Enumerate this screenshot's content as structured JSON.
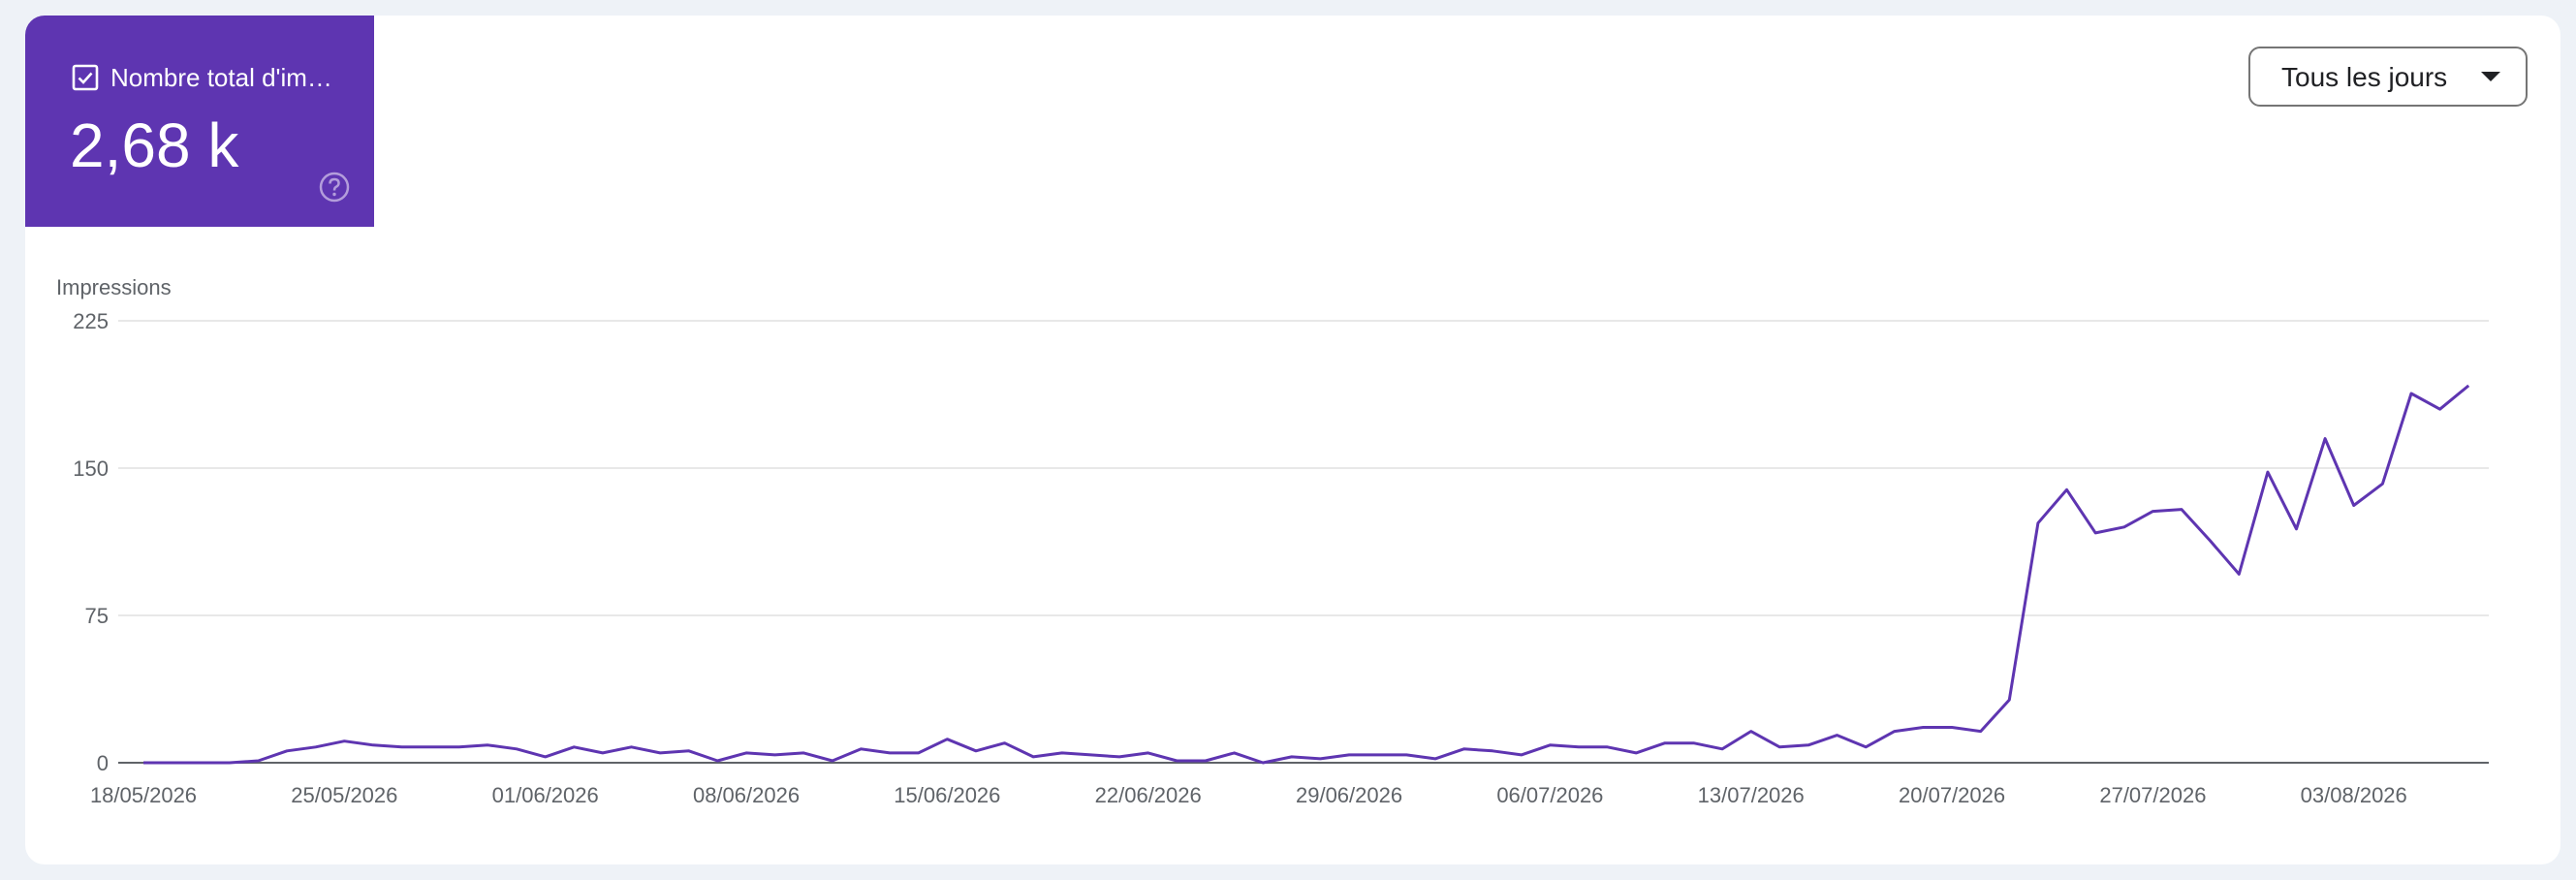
{
  "metric": {
    "label": "Nombre total d'im…",
    "value": "2,68 k",
    "checked": true,
    "color": "#5e35b1"
  },
  "dropdown": {
    "selected": "Tous les jours"
  },
  "chart_data": {
    "type": "line",
    "ylabel": "Impressions",
    "xlabel": "",
    "title": "",
    "ylim": [
      0,
      225
    ],
    "yticks": [
      0,
      75,
      150,
      225
    ],
    "yticklabels": [
      "0",
      "75",
      "150",
      "225"
    ],
    "xticks": [
      "18/05/2026",
      "25/05/2026",
      "01/06/2026",
      "08/06/2026",
      "15/06/2026",
      "22/06/2026",
      "29/06/2026",
      "06/07/2026",
      "13/07/2026",
      "20/07/2026",
      "27/07/2026",
      "03/08/2026"
    ],
    "x_start": "18/05/2026",
    "x_step_days": 1,
    "grid": true,
    "line_color": "#5e35b1",
    "series": [
      {
        "values": [
          0,
          0,
          0,
          0,
          1,
          6,
          8,
          11,
          9,
          8,
          8,
          8,
          9,
          7,
          3,
          8,
          5,
          8,
          5,
          6,
          1,
          5,
          4,
          5,
          1,
          7,
          5,
          5,
          12,
          6,
          10,
          3,
          5,
          4,
          3,
          5,
          1,
          1,
          5,
          0,
          3,
          2,
          4,
          4,
          4,
          2,
          7,
          6,
          4,
          9,
          8,
          8,
          5,
          10,
          10,
          7,
          16,
          8,
          9,
          14,
          8,
          16,
          18,
          18,
          16,
          32,
          122,
          139,
          117,
          120,
          128,
          129,
          113,
          96,
          148,
          119,
          165,
          131,
          142,
          188,
          180,
          192
        ]
      }
    ]
  }
}
